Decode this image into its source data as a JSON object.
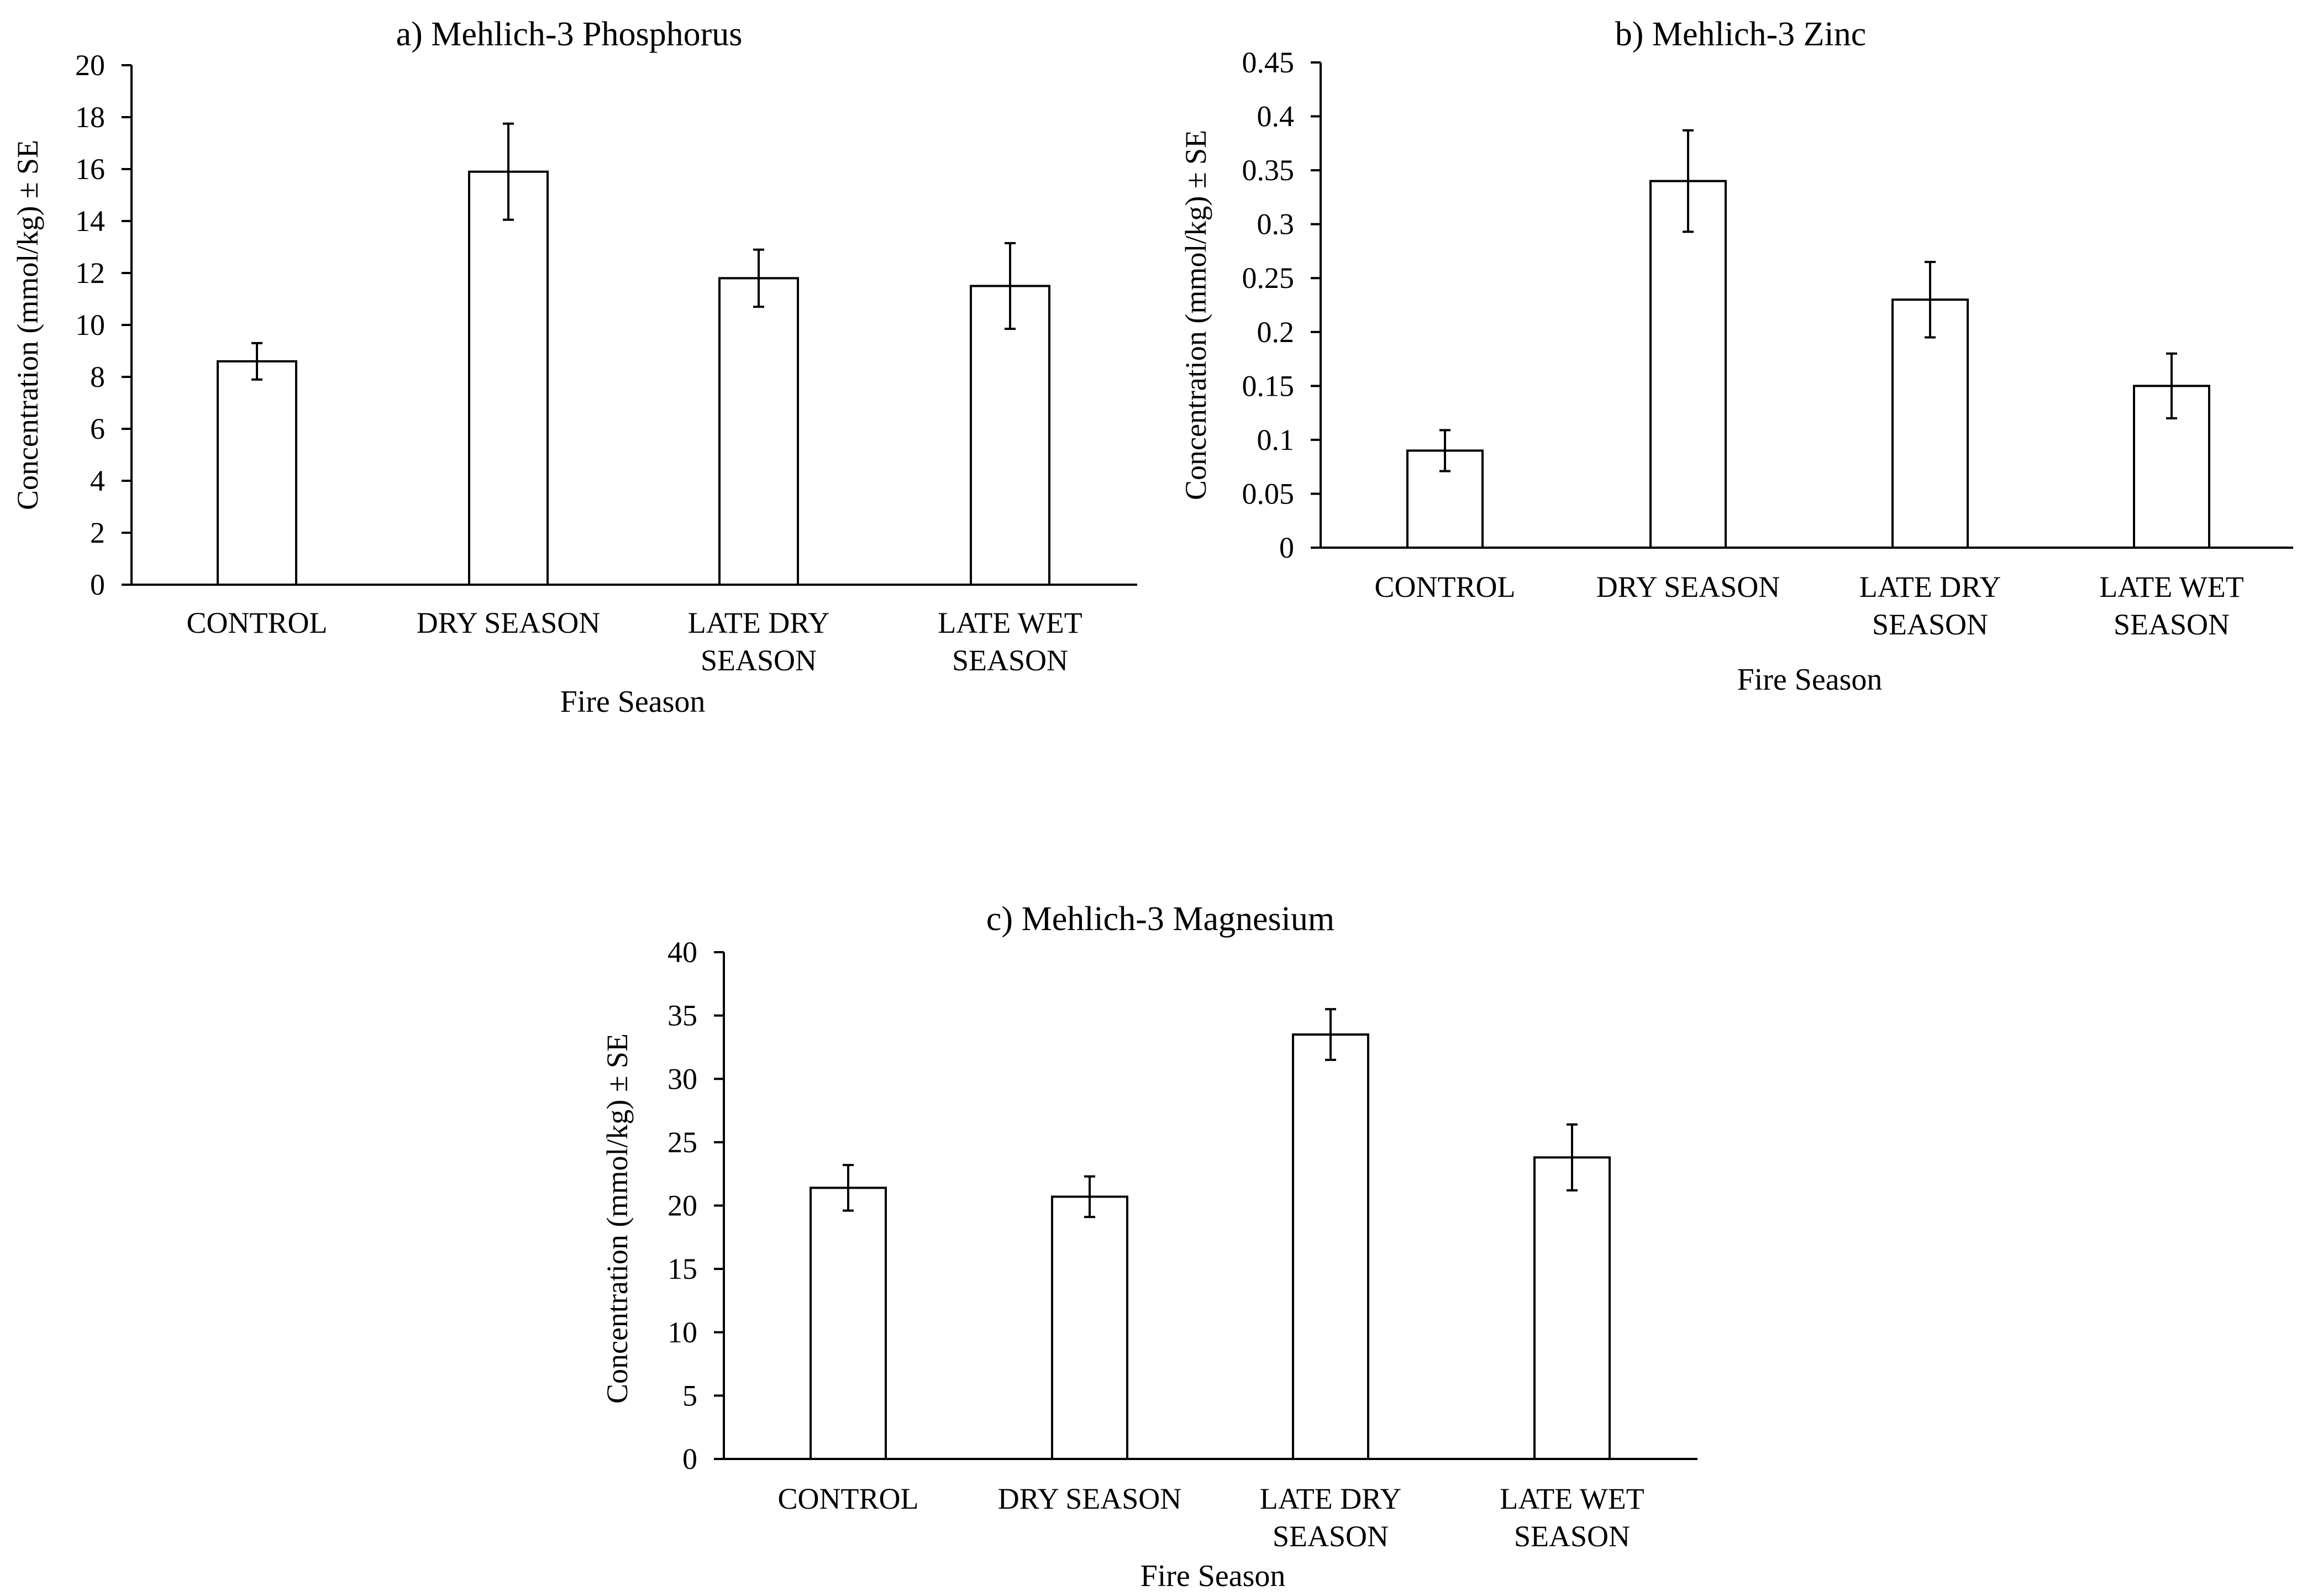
{
  "chart_data": [
    {
      "type": "bar",
      "title": "a) Mehlich-3  Phosphorus",
      "xlabel": "Fire Season",
      "ylabel": "Concentration (mmol/kg) ± SE",
      "categories": [
        [
          "CONTROL"
        ],
        [
          "DRY SEASON"
        ],
        [
          "LATE DRY",
          "SEASON"
        ],
        [
          "LATE WET",
          "SEASON"
        ]
      ],
      "values": [
        8.6,
        15.9,
        11.8,
        11.5
      ],
      "errors": [
        0.7,
        1.85,
        1.1,
        1.65
      ],
      "ylim": [
        0,
        20
      ],
      "yticks": [
        0,
        2,
        4,
        6,
        8,
        10,
        12,
        14,
        16,
        18,
        20
      ],
      "ytick_labels": [
        "0",
        "2",
        "4",
        "6",
        "8",
        "10",
        "12",
        "14",
        "16",
        "18",
        "20"
      ],
      "grid": false,
      "legend": "none"
    },
    {
      "type": "bar",
      "title": "b) Mehlich-3  Zinc",
      "xlabel": "Fire Season",
      "ylabel": "Concentration (mmol/kg) ± SE",
      "categories": [
        [
          "CONTROL"
        ],
        [
          "DRY SEASON"
        ],
        [
          "LATE DRY",
          "SEASON"
        ],
        [
          "LATE WET",
          "SEASON"
        ]
      ],
      "values": [
        0.09,
        0.34,
        0.23,
        0.15
      ],
      "errors": [
        0.019,
        0.047,
        0.035,
        0.03
      ],
      "ylim": [
        0,
        0.45
      ],
      "yticks": [
        0,
        0.05,
        0.1,
        0.15,
        0.2,
        0.25,
        0.3,
        0.35,
        0.4,
        0.45
      ],
      "ytick_labels": [
        "0",
        "0.05",
        "0.1",
        "0.15",
        "0.2",
        "0.25",
        "0.3",
        "0.35",
        "0.4",
        "0.45"
      ],
      "grid": false,
      "legend": "none"
    },
    {
      "type": "bar",
      "title": "c) Mehlich-3  Magnesium",
      "xlabel": "Fire Season",
      "ylabel": "Concentration (mmol/kg) ± SE",
      "categories": [
        [
          "CONTROL"
        ],
        [
          "DRY SEASON"
        ],
        [
          "LATE DRY",
          "SEASON"
        ],
        [
          "LATE WET",
          "SEASON"
        ]
      ],
      "values": [
        21.4,
        20.7,
        33.5,
        23.8
      ],
      "errors": [
        1.8,
        1.6,
        2.0,
        2.6
      ],
      "ylim": [
        0,
        40
      ],
      "yticks": [
        0,
        5,
        10,
        15,
        20,
        25,
        30,
        35,
        40
      ],
      "ytick_labels": [
        "0",
        "5",
        "10",
        "15",
        "20",
        "25",
        "30",
        "35",
        "40"
      ],
      "grid": false,
      "legend": "none"
    }
  ]
}
